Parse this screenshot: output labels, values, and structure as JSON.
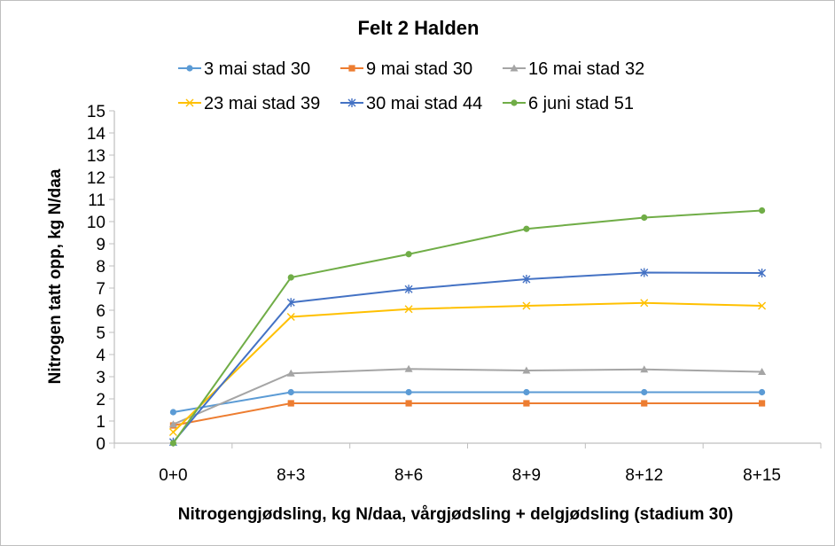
{
  "chart_data": {
    "type": "line",
    "title": "Felt 2 Halden",
    "xlabel": "Nitrogengjødsling, kg N/daa, vårgjødsling + delgjødsling (stadium 30)",
    "ylabel": "Nitrogen tatt opp, kg N/daa",
    "categories": [
      "0+0",
      "8+3",
      "8+6",
      "8+9",
      "8+12",
      "8+15"
    ],
    "ylim": [
      0,
      15
    ],
    "yticks": [
      0,
      1,
      2,
      3,
      4,
      5,
      6,
      7,
      8,
      9,
      10,
      11,
      12,
      13,
      14,
      15
    ],
    "grid": false,
    "legend_position": "top",
    "series": [
      {
        "name": "3 mai stad 30",
        "color": "#5B9BD5",
        "marker": "circle",
        "values": [
          1.4,
          2.3,
          2.3,
          2.3,
          2.3,
          2.3
        ]
      },
      {
        "name": "9 mai stad 30",
        "color": "#ED7D31",
        "marker": "square",
        "values": [
          0.8,
          1.8,
          1.8,
          1.8,
          1.8,
          1.8
        ]
      },
      {
        "name": "16 mai stad 32",
        "color": "#A5A5A5",
        "marker": "triangle",
        "values": [
          0.85,
          3.15,
          3.35,
          3.28,
          3.33,
          3.22
        ]
      },
      {
        "name": "23 mai stad 39",
        "color": "#FFC000",
        "marker": "x",
        "values": [
          0.5,
          5.7,
          6.05,
          6.2,
          6.33,
          6.2
        ]
      },
      {
        "name": "30 mai stad 44",
        "color": "#4472C4",
        "marker": "star",
        "values": [
          0.05,
          6.35,
          6.95,
          7.4,
          7.7,
          7.68
        ]
      },
      {
        "name": "6 juni stad 51",
        "color": "#70AD47",
        "marker": "circle",
        "values": [
          0.0,
          7.48,
          8.53,
          9.67,
          10.18,
          10.5
        ]
      }
    ]
  }
}
